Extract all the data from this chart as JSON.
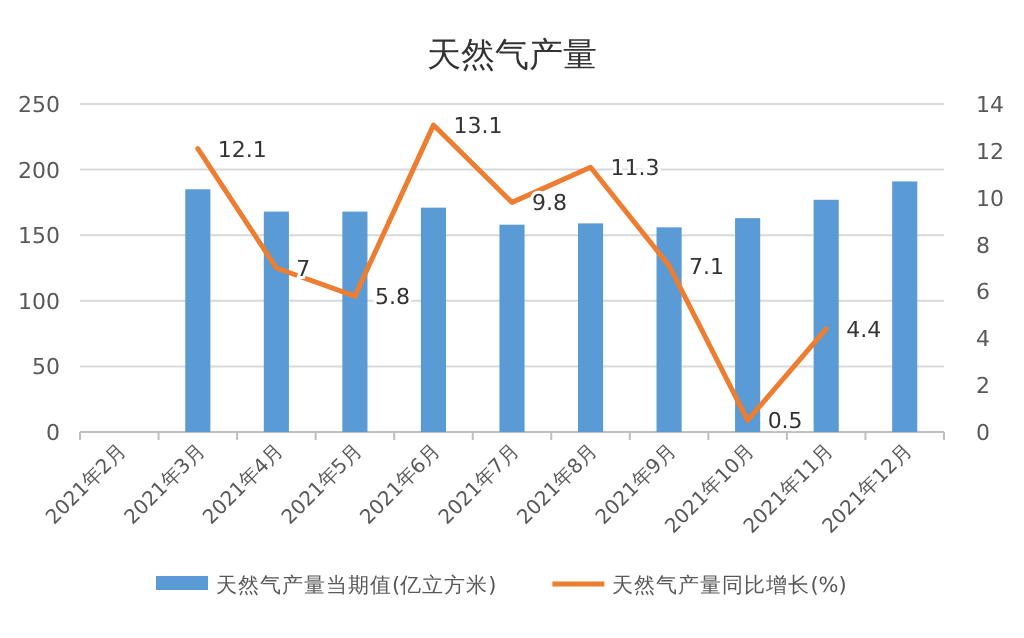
{
  "chart_data": {
    "type": "bar",
    "title": "天然气产量",
    "categories": [
      "2021年2月",
      "2021年3月",
      "2021年4月",
      "2021年5月",
      "2021年6月",
      "2021年7月",
      "2021年8月",
      "2021年9月",
      "2021年10月",
      "2021年11月",
      "2021年12月"
    ],
    "series": [
      {
        "name": "天然气产量当期值(亿立方米)",
        "type": "bar",
        "color": "#5b9bd5",
        "values": [
          null,
          185,
          168,
          168,
          171,
          158,
          159,
          156,
          163,
          177,
          191
        ]
      },
      {
        "name": "天然气产量同比增长(%)",
        "type": "line",
        "axis": "y2",
        "color": "#ed7d31",
        "marker": "none",
        "values": [
          null,
          12.1,
          7,
          5.8,
          13.1,
          9.8,
          11.3,
          7.1,
          0.5,
          4.4,
          null
        ],
        "value_labels": [
          null,
          "12.1",
          "7",
          "5.8",
          "13.1",
          "9.8",
          "11.3",
          "7.1",
          "0.5",
          "4.4",
          null
        ]
      }
    ],
    "ylim": [
      0,
      250
    ],
    "yticks": [
      0,
      50,
      100,
      150,
      200,
      250
    ],
    "y2lim": [
      0,
      14
    ],
    "y2ticks": [
      0,
      2,
      4,
      6,
      8,
      10,
      12,
      14
    ],
    "grid": "y",
    "legend": "bottom"
  }
}
